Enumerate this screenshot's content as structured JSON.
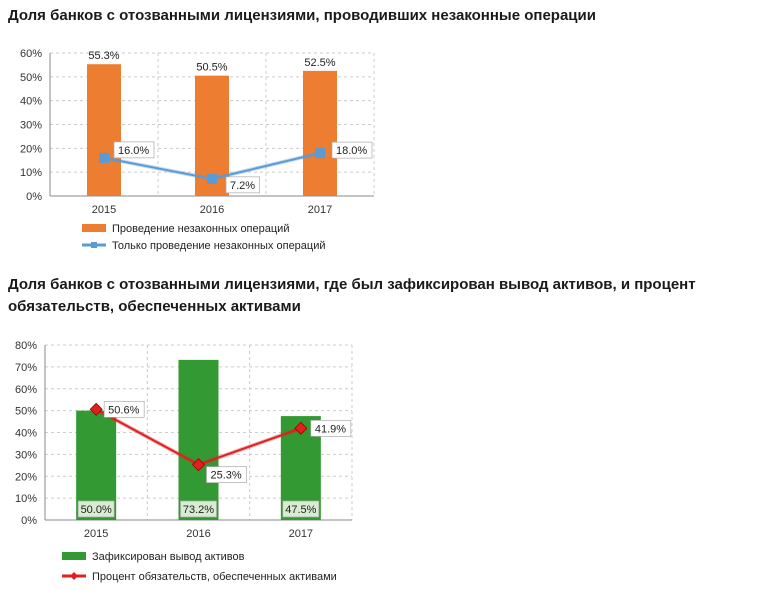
{
  "chart_data": [
    {
      "type": "bar",
      "title": "Доля банков с отозванными лицензиями, проводивших незаконные операции",
      "categories": [
        "2015",
        "2016",
        "2017"
      ],
      "ylim": [
        0,
        60
      ],
      "yticks": [
        "0%",
        "10%",
        "20%",
        "30%",
        "40%",
        "50%",
        "60%"
      ],
      "series": [
        {
          "name": "Проведение незаконных операций",
          "kind": "bar",
          "color": "#ed7d31",
          "values": [
            55.3,
            50.5,
            52.5
          ],
          "labels": [
            "55.3%",
            "50.5%",
            "52.5%"
          ]
        },
        {
          "name": "Только проведение незаконных операций",
          "kind": "line",
          "color": "#5b9bd5",
          "values": [
            16.0,
            7.2,
            18.0
          ],
          "labels": [
            "16.0%",
            "7.2%",
            "18.0%"
          ]
        }
      ],
      "legend": "bottom"
    },
    {
      "type": "bar",
      "title": "Доля банков с отозванными лицензиями, где был зафиксирован вывод активов, и процент обязательств, обеспеченных активами",
      "categories": [
        "2015",
        "2016",
        "2017"
      ],
      "ylim": [
        0,
        80
      ],
      "yticks": [
        "0%",
        "10%",
        "20%",
        "30%",
        "40%",
        "50%",
        "60%",
        "70%",
        "80%"
      ],
      "series": [
        {
          "name": "Зафиксирован вывод активов",
          "kind": "bar",
          "color": "#339933",
          "values": [
            50.0,
            73.2,
            47.5
          ],
          "labels": [
            "50.0%",
            "73.2%",
            "47.5%"
          ]
        },
        {
          "name": "Процент обязательств, обеспеченных активами",
          "kind": "line",
          "color": "#e02020",
          "values": [
            50.6,
            25.3,
            41.9
          ],
          "labels": [
            "50.6%",
            "25.3%",
            "41.9%"
          ]
        }
      ],
      "legend": "bottom"
    }
  ]
}
